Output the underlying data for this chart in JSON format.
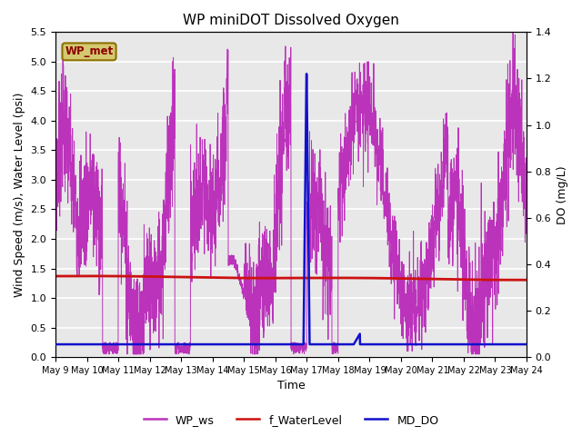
{
  "title": "WP miniDOT Dissolved Oxygen",
  "xlabel": "Time",
  "ylabel_left": "Wind Speed (m/s), Water Level (psi)",
  "ylabel_right": "DO (mg/L)",
  "ylim_left": [
    0.0,
    5.5
  ],
  "ylim_right": [
    0.0,
    1.4
  ],
  "yticks_left": [
    0.0,
    0.5,
    1.0,
    1.5,
    2.0,
    2.5,
    3.0,
    3.5,
    4.0,
    4.5,
    5.0,
    5.5
  ],
  "yticks_right": [
    0.0,
    0.2,
    0.4,
    0.6,
    0.8,
    1.0,
    1.2,
    1.4
  ],
  "xtick_labels": [
    "May 9",
    "May 10",
    "May 11",
    "May 12",
    "May 13",
    "May 14",
    "May 15",
    "May 16",
    "May 17",
    "May 18",
    "May 19",
    "May 20",
    "May 21",
    "May 22",
    "May 23",
    "May 24"
  ],
  "wp_met_label": "WP_met",
  "wp_met_text_color": "#8B0000",
  "wp_met_box_color": "#D4C870",
  "wp_met_edge_color": "#8B7000",
  "legend_labels": [
    "WP_ws",
    "f_WaterLevel",
    "MD_DO"
  ],
  "line_colors": {
    "WP_ws": "#BB33BB",
    "f_WaterLevel": "#CC1111",
    "MD_DO": "#1111CC"
  },
  "background_color": "#E8E8E8",
  "grid_color": "#FFFFFF",
  "fig_bg": "#FFFFFF"
}
